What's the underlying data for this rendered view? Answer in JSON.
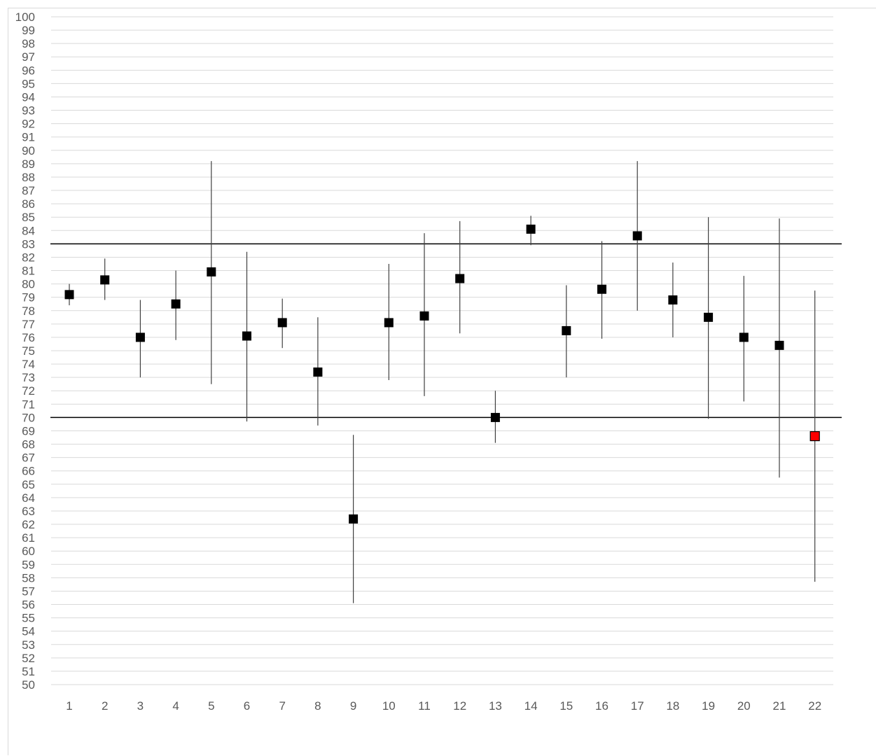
{
  "chart_data": {
    "type": "scatter",
    "title": "",
    "xlabel": "",
    "ylabel": "",
    "ylim": [
      50,
      100
    ],
    "y_tick_step": 1,
    "grid": true,
    "categories": [
      "1",
      "2",
      "3",
      "4",
      "5",
      "6",
      "7",
      "8",
      "9",
      "10",
      "11",
      "12",
      "13",
      "14",
      "15",
      "16",
      "17",
      "18",
      "19",
      "20",
      "21",
      "22"
    ],
    "series": [
      {
        "values": [
          79.2,
          80.3,
          76.0,
          78.5,
          80.9,
          76.1,
          77.1,
          73.4,
          62.4,
          77.1,
          77.6,
          80.4,
          70.0,
          84.1,
          76.5,
          79.6,
          83.6,
          78.8,
          77.5,
          76.0,
          75.4,
          68.6
        ],
        "error_low": [
          78.4,
          78.8,
          73.0,
          75.8,
          72.5,
          69.7,
          75.2,
          69.4,
          56.1,
          72.8,
          71.6,
          76.3,
          68.1,
          82.9,
          73.0,
          75.9,
          78.0,
          76.0,
          69.9,
          71.2,
          65.5,
          57.7
        ],
        "error_high": [
          80.0,
          81.9,
          78.8,
          81.0,
          89.2,
          82.4,
          78.9,
          77.5,
          68.7,
          81.5,
          83.8,
          84.7,
          72.0,
          85.1,
          79.9,
          83.2,
          89.2,
          81.6,
          85.0,
          80.6,
          84.9,
          79.5
        ],
        "point_colors": [
          "#000000",
          "#000000",
          "#000000",
          "#000000",
          "#000000",
          "#000000",
          "#000000",
          "#000000",
          "#000000",
          "#000000",
          "#000000",
          "#000000",
          "#000000",
          "#000000",
          "#000000",
          "#000000",
          "#000000",
          "#000000",
          "#000000",
          "#000000",
          "#000000",
          "#ff0000"
        ]
      }
    ],
    "reference_lines": [
      83,
      70
    ],
    "colors": {
      "grid": "#d9d9d9",
      "marker": "#000000",
      "highlight": "#ff0000",
      "error_bar": "#404040",
      "reference": "#000000",
      "tick_text": "#595959"
    }
  }
}
